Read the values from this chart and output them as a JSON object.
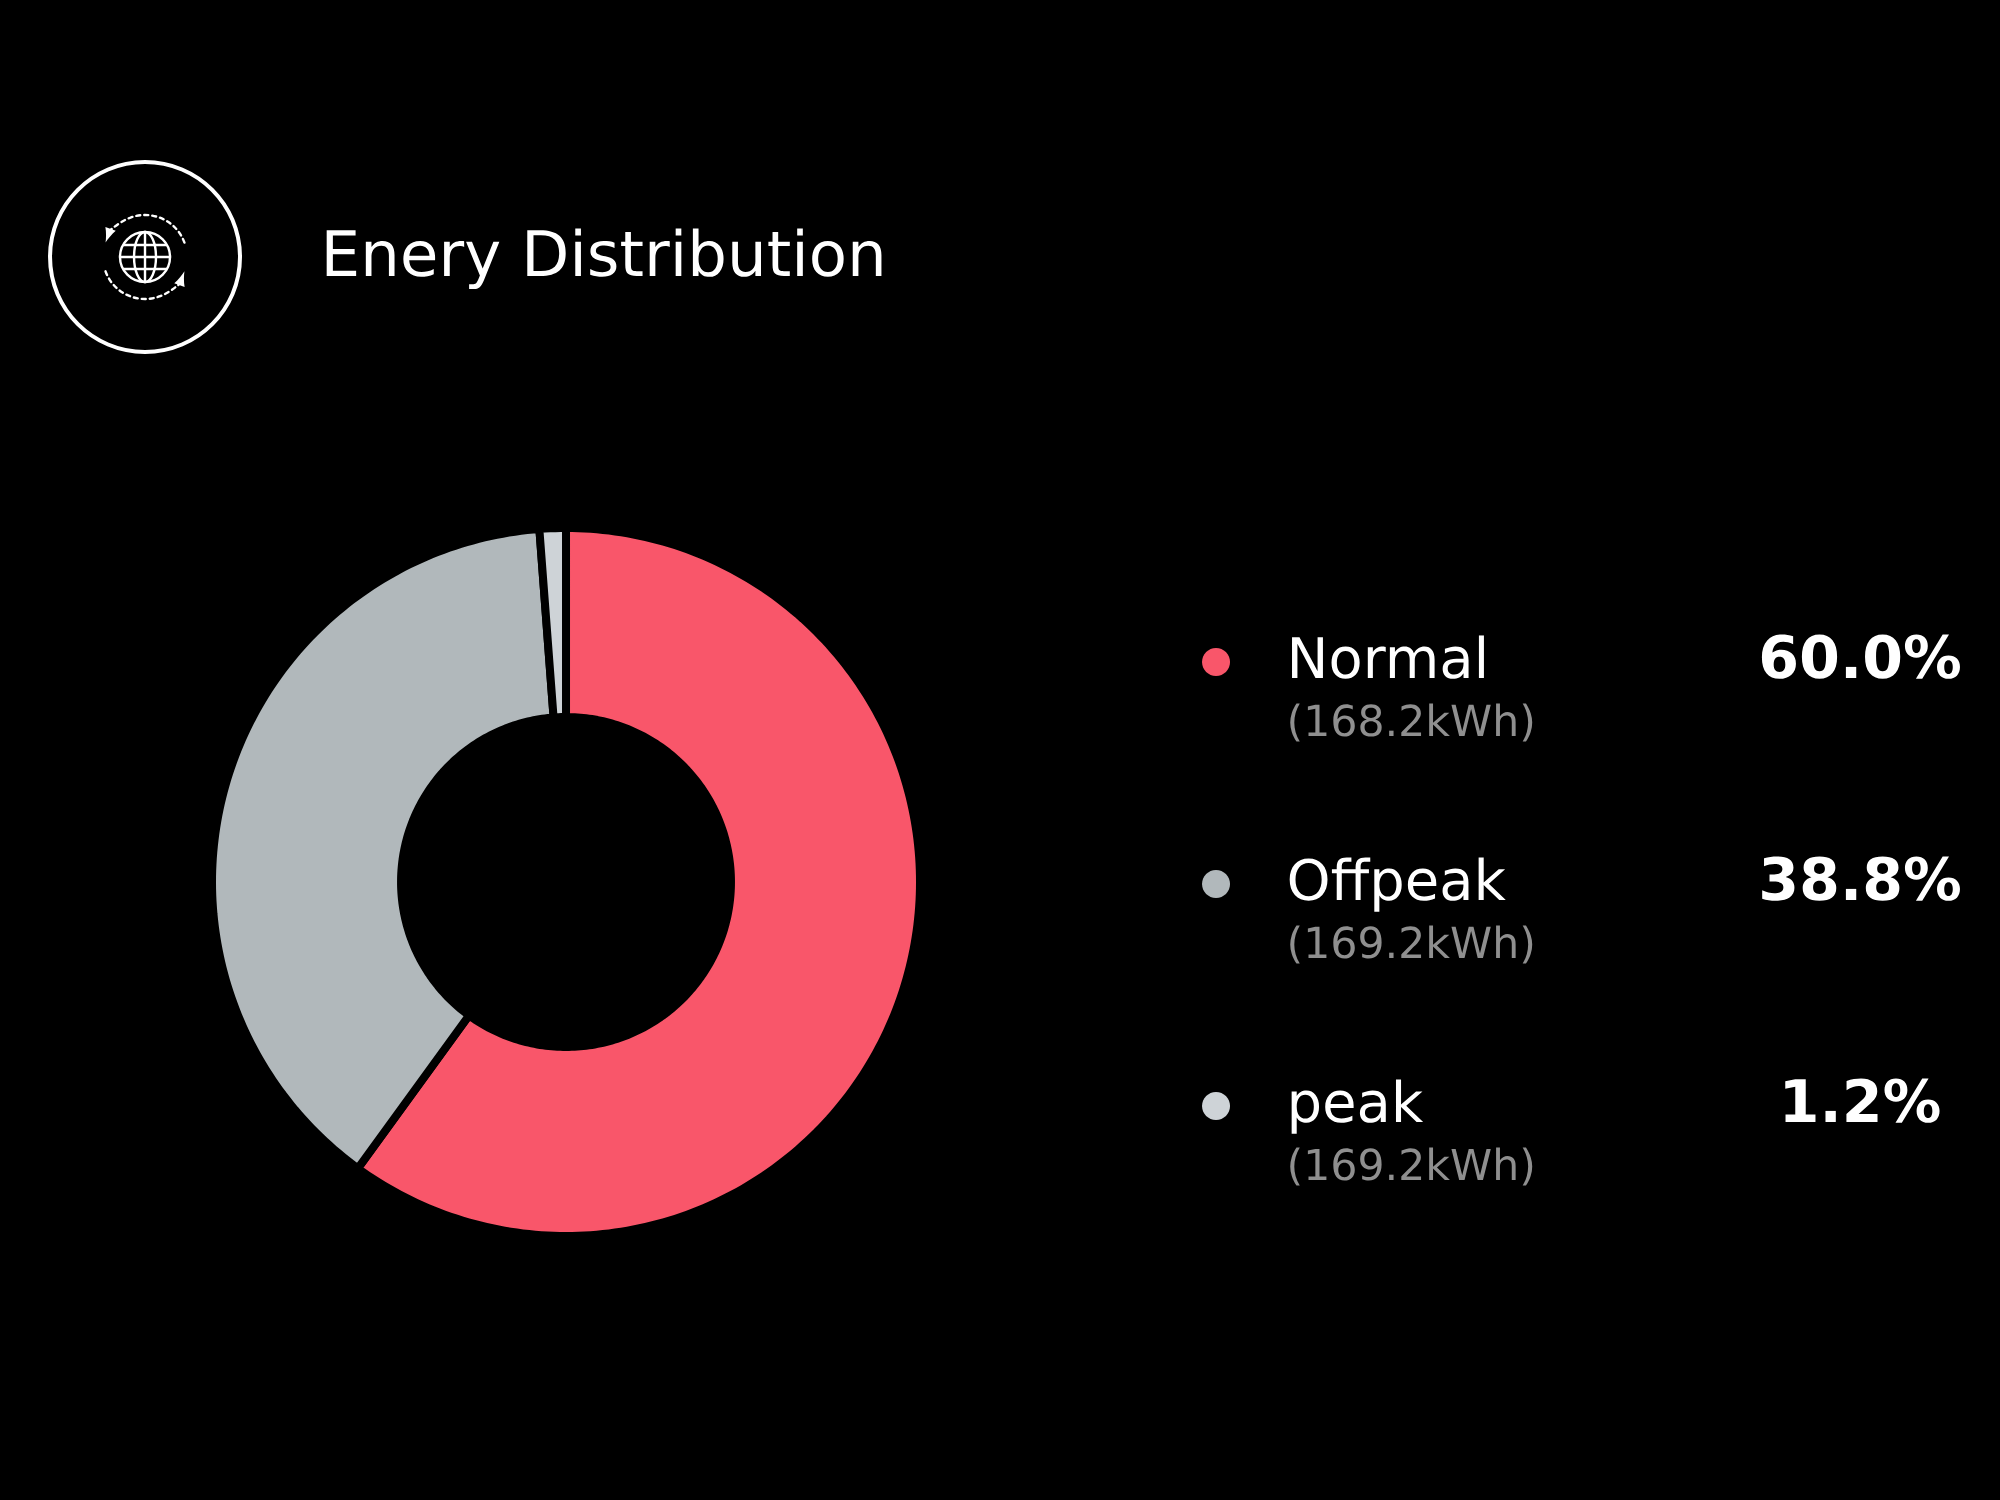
{
  "chart_data": {
    "type": "donut",
    "title": "Enery Distribution",
    "categories": [
      "Normal",
      "Offpeak",
      "peak"
    ],
    "values": [
      60.0,
      38.8,
      1.2
    ],
    "colors": [
      "#f9566a",
      "#b1b8bb",
      "#ced3d7"
    ],
    "value_labels": [
      "60.0%",
      "38.8%",
      "1.2%"
    ],
    "annotations": [
      "(168.2kWh)",
      "(169.2kWh)",
      "(169.2kWh)"
    ],
    "legend": "right"
  }
}
